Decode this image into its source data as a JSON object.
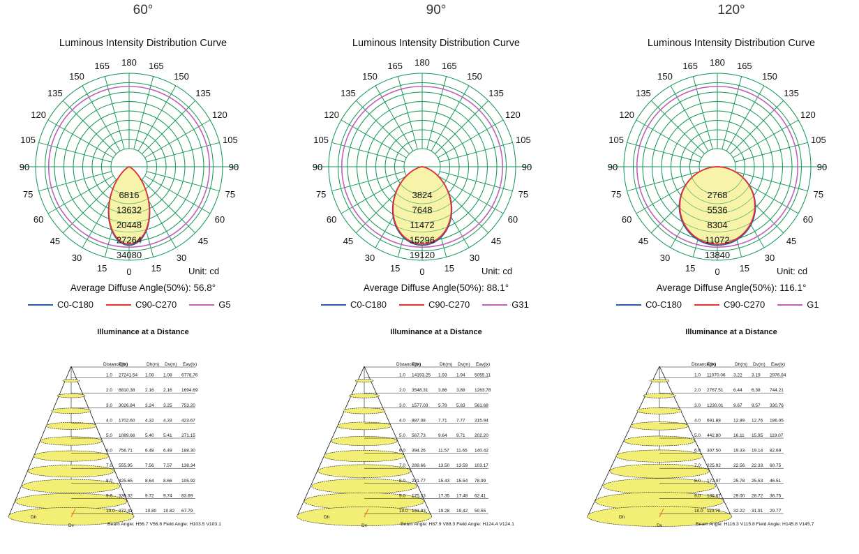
{
  "polar_title": "Luminous Intensity Distribution Curve",
  "unit_label": "Unit: cd",
  "illuminance_title": "Illuminance at a Distance",
  "legend_c0": "C0-C180",
  "legend_c90": "C90-C270",
  "dh_label": "Dh",
  "dv_label": "Dv",
  "table_headers": [
    "Distance(m)",
    "E(lx)",
    "Dh(m)",
    "Dv(m)",
    "Eav(lx)"
  ],
  "angle_labels": [
    "180",
    "165",
    "165",
    "150",
    "150",
    "135",
    "135",
    "120",
    "120",
    "105",
    "105",
    "90",
    "90",
    "75",
    "75",
    "60",
    "60",
    "45",
    "45",
    "30",
    "30",
    "15",
    "15",
    "0"
  ],
  "colors": {
    "c0": "#2b5aa8",
    "c90": "#e83030",
    "g": "#c060b8",
    "grid": "#1a9a5a",
    "fill": "#f7f3a8",
    "cone_fill": "#f3ee74",
    "accent_line": "#e87020"
  },
  "chart_data": [
    {
      "type": "polar",
      "beam_title": "60°",
      "title": "Luminous Intensity Distribution Curve",
      "radial_labels": [
        "6816",
        "13632",
        "20448",
        "27264",
        "34080"
      ],
      "rmax": 34080,
      "avg_angle": "Average Diffuse Angle(50%): 56.8°",
      "g_label": "G5",
      "half_angle": 30,
      "illuminance": {
        "title": "Illuminance at a Distance",
        "rows": [
          [
            "1.0",
            "27241.54",
            "1.08",
            "1.08",
            "6778.76"
          ],
          [
            "2.0",
            "6810.38",
            "2.16",
            "2.16",
            "1694.69"
          ],
          [
            "3.0",
            "3026.84",
            "3.24",
            "3.25",
            "753.20"
          ],
          [
            "4.0",
            "1702.60",
            "4.32",
            "4.33",
            "423.67"
          ],
          [
            "5.0",
            "1089.66",
            "5.40",
            "5.41",
            "271.15"
          ],
          [
            "6.0",
            "756.71",
            "6.48",
            "6.49",
            "188.30"
          ],
          [
            "7.0",
            "555.95",
            "7.56",
            "7.57",
            "138.34"
          ],
          [
            "8.0",
            "425.65",
            "8.64",
            "8.66",
            "105.92"
          ],
          [
            "9.0",
            "336.32",
            "9.72",
            "9.74",
            "83.69"
          ],
          [
            "10.0",
            "272.42",
            "10.80",
            "10.82",
            "67.79"
          ]
        ],
        "footer": "Beam Angle: H56.7 V56.8  Field Angle: H103.5 V103.1"
      }
    },
    {
      "type": "polar",
      "beam_title": "90°",
      "title": "Luminous Intensity Distribution Curve",
      "radial_labels": [
        "3824",
        "7648",
        "11472",
        "15296",
        "19120"
      ],
      "rmax": 19120,
      "avg_angle": "Average Diffuse Angle(50%): 88.1°",
      "g_label": "G31",
      "half_angle": 44,
      "illuminance": {
        "title": "Illuminance at a Distance",
        "rows": [
          [
            "1.0",
            "14193.25",
            "1.93",
            "1.94",
            "5055.11"
          ],
          [
            "2.0",
            "3548.31",
            "3.86",
            "3.88",
            "1263.78"
          ],
          [
            "3.0",
            "1577.03",
            "5.78",
            "5.83",
            "561.68"
          ],
          [
            "4.0",
            "887.08",
            "7.71",
            "7.77",
            "315.94"
          ],
          [
            "5.0",
            "567.73",
            "9.64",
            "9.71",
            "202.20"
          ],
          [
            "6.0",
            "394.26",
            "11.57",
            "11.65",
            "140.42"
          ],
          [
            "7.0",
            "289.66",
            "13.50",
            "13.59",
            "103.17"
          ],
          [
            "8.0",
            "221.77",
            "15.43",
            "15.54",
            "78.99"
          ],
          [
            "9.0",
            "175.23",
            "17.35",
            "17.48",
            "62.41"
          ],
          [
            "10.0",
            "141.93",
            "19.28",
            "19.42",
            "50.55"
          ]
        ],
        "footer": "Beam Angle: H87.9 V88.3  Field Angle: H124.4 V124.1"
      }
    },
    {
      "type": "polar",
      "beam_title": "120°",
      "title": "Luminous Intensity Distribution Curve",
      "radial_labels": [
        "2768",
        "5536",
        "8304",
        "11072",
        "13840"
      ],
      "rmax": 13840,
      "avg_angle": "Average Diffuse Angle(50%): 116.1°",
      "g_label": "G1",
      "half_angle": 58,
      "illuminance": {
        "title": "Illuminance at a Distance",
        "rows": [
          [
            "1.0",
            "11070.06",
            "3.22",
            "3.19",
            "2976.84"
          ],
          [
            "2.0",
            "2767.51",
            "6.44",
            "6.38",
            "744.21"
          ],
          [
            "3.0",
            "1230.01",
            "9.67",
            "9.57",
            "330.76"
          ],
          [
            "4.0",
            "691.88",
            "12.89",
            "12.76",
            "186.05"
          ],
          [
            "5.0",
            "442.80",
            "16.11",
            "15.95",
            "119.07"
          ],
          [
            "6.0",
            "307.50",
            "19.33",
            "19.14",
            "82.69"
          ],
          [
            "7.0",
            "225.92",
            "22.56",
            "22.33",
            "60.75"
          ],
          [
            "8.0",
            "172.97",
            "25.78",
            "25.53",
            "46.51"
          ],
          [
            "9.0",
            "136.67",
            "29.00",
            "28.72",
            "36.75"
          ],
          [
            "10.0",
            "110.70",
            "32.22",
            "31.91",
            "29.77"
          ]
        ],
        "footer": "Beam Angle: H116.3 V115.8  Field Angle: H145.8 V145.7"
      }
    }
  ]
}
